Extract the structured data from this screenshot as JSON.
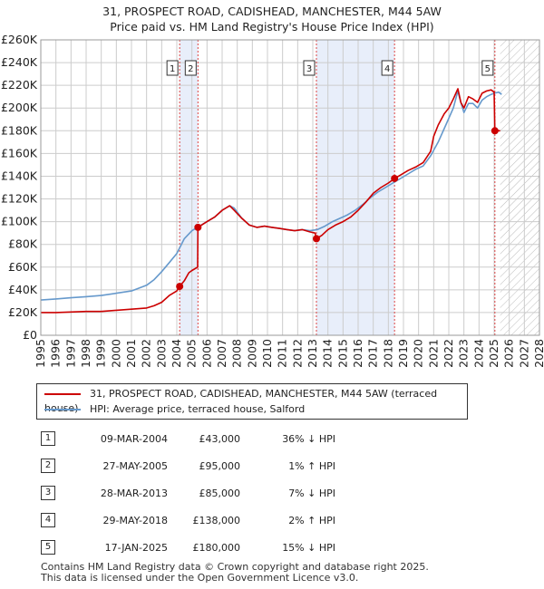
{
  "title_line1": "31, PROSPECT ROAD, CADISHEAD, MANCHESTER, M44 5AW",
  "title_line2": "Price paid vs. HM Land Registry's House Price Index (HPI)",
  "colors": {
    "property": "#cc0000",
    "hpi": "#6699cc",
    "shade": "#e8eefa",
    "grid": "#cccccc",
    "sale_line": "#dd4444"
  },
  "chart_data": {
    "type": "line",
    "title": "31, PROSPECT ROAD, CADISHEAD, MANCHESTER, M44 5AW",
    "subtitle": "Price paid vs. HM Land Registry's House Price Index (HPI)",
    "xlim": [
      1995,
      2028
    ],
    "ylim": [
      0,
      260000
    ],
    "x_ticks": [
      "1995",
      "1996",
      "1997",
      "1998",
      "1999",
      "2000",
      "2001",
      "2002",
      "2003",
      "2004",
      "2005",
      "2006",
      "2007",
      "2008",
      "2009",
      "2010",
      "2011",
      "2012",
      "2013",
      "2014",
      "2015",
      "2016",
      "2017",
      "2018",
      "2019",
      "2020",
      "2021",
      "2022",
      "2023",
      "2024",
      "2025",
      "2026",
      "2027",
      "2028"
    ],
    "y_ticks": [
      {
        "value": 0,
        "label": "£0"
      },
      {
        "value": 20000,
        "label": "£20K"
      },
      {
        "value": 40000,
        "label": "£40K"
      },
      {
        "value": 60000,
        "label": "£60K"
      },
      {
        "value": 80000,
        "label": "£80K"
      },
      {
        "value": 100000,
        "label": "£100K"
      },
      {
        "value": 120000,
        "label": "£120K"
      },
      {
        "value": 140000,
        "label": "£140K"
      },
      {
        "value": 160000,
        "label": "£160K"
      },
      {
        "value": 180000,
        "label": "£180K"
      },
      {
        "value": 200000,
        "label": "£200K"
      },
      {
        "value": 220000,
        "label": "£220K"
      },
      {
        "value": 240000,
        "label": "£240K"
      },
      {
        "value": 260000,
        "label": "£260K"
      }
    ],
    "shaded_ranges": [
      [
        2004.19,
        2005.4
      ],
      [
        2013.24,
        2018.41
      ]
    ],
    "future_hatch_from": 2025.4,
    "series": [
      {
        "name": "31, PROSPECT ROAD, CADISHEAD, MANCHESTER, M44 5AW (terraced house)",
        "color": "#cc0000",
        "x": [
          1995.0,
          1996.0,
          1997.0,
          1998.0,
          1999.0,
          2000.0,
          2001.0,
          2002.0,
          2002.5,
          2003.0,
          2003.5,
          2004.0,
          2004.19,
          2004.5,
          2004.8,
          2005.0,
          2005.38,
          2005.4,
          2006.0,
          2006.5,
          2007.0,
          2007.5,
          2007.8,
          2008.3,
          2008.8,
          2009.3,
          2009.8,
          2010.3,
          2010.8,
          2011.3,
          2011.8,
          2012.3,
          2012.8,
          2013.15,
          2013.24,
          2013.6,
          2014.0,
          2014.5,
          2015.0,
          2015.5,
          2016.0,
          2016.5,
          2017.0,
          2017.5,
          2018.0,
          2018.41,
          2018.8,
          2019.3,
          2019.8,
          2020.3,
          2020.8,
          2021.0,
          2021.3,
          2021.7,
          2022.0,
          2022.3,
          2022.6,
          2022.8,
          2023.0,
          2023.3,
          2023.6,
          2023.9,
          2024.2,
          2024.5,
          2024.8,
          2025.0,
          2025.05,
          2025.4
        ],
        "y": [
          20000,
          20000,
          20500,
          21000,
          21000,
          22000,
          23000,
          24000,
          26000,
          29000,
          35000,
          39000,
          43000,
          48000,
          55000,
          57000,
          60000,
          95000,
          100000,
          104000,
          110000,
          114000,
          110000,
          103000,
          97000,
          95000,
          96000,
          95000,
          94000,
          93000,
          92000,
          93000,
          91000,
          90000,
          85000,
          88000,
          93000,
          97000,
          100000,
          104000,
          110000,
          117000,
          125000,
          130000,
          134000,
          138000,
          141000,
          145000,
          148000,
          152000,
          162000,
          175000,
          185000,
          195000,
          200000,
          208000,
          217000,
          205000,
          200000,
          210000,
          208000,
          205000,
          213000,
          215000,
          216000,
          214000,
          180000,
          180000
        ]
      },
      {
        "name": "HPI: Average price, terraced house, Salford",
        "color": "#6699cc",
        "x": [
          1995.0,
          1996.0,
          1997.0,
          1998.0,
          1999.0,
          2000.0,
          2001.0,
          2002.0,
          2002.5,
          2003.0,
          2003.5,
          2004.0,
          2004.5,
          2005.0,
          2005.5,
          2006.0,
          2006.5,
          2007.0,
          2007.5,
          2007.8,
          2008.3,
          2008.8,
          2009.3,
          2009.8,
          2010.3,
          2010.8,
          2011.3,
          2011.8,
          2012.3,
          2012.8,
          2013.3,
          2013.8,
          2014.3,
          2014.8,
          2015.3,
          2015.8,
          2016.3,
          2016.8,
          2017.3,
          2017.8,
          2018.3,
          2018.8,
          2019.3,
          2019.8,
          2020.3,
          2020.8,
          2021.3,
          2021.8,
          2022.3,
          2022.6,
          2022.8,
          2023.0,
          2023.3,
          2023.6,
          2023.9,
          2024.2,
          2024.5,
          2024.8,
          2025.0,
          2025.3,
          2025.5
        ],
        "y": [
          31000,
          32000,
          33000,
          34000,
          35000,
          37000,
          39000,
          44000,
          49000,
          56000,
          64000,
          72000,
          85000,
          92000,
          96000,
          100000,
          104000,
          110000,
          114000,
          112000,
          103000,
          97000,
          95000,
          96000,
          95000,
          94000,
          93000,
          92000,
          93000,
          92000,
          93000,
          96000,
          100000,
          103000,
          106000,
          110000,
          115000,
          121000,
          126000,
          130000,
          134000,
          138000,
          142000,
          146000,
          149000,
          158000,
          170000,
          185000,
          200000,
          215000,
          205000,
          196000,
          204000,
          204000,
          200000,
          207000,
          210000,
          212000,
          213000,
          214000,
          212000
        ]
      }
    ],
    "sales": [
      {
        "marker": "1",
        "x": 2004.19,
        "y": 43000
      },
      {
        "marker": "2",
        "x": 2005.4,
        "y": 95000
      },
      {
        "marker": "3",
        "x": 2013.24,
        "y": 85000
      },
      {
        "marker": "4",
        "x": 2018.41,
        "y": 138000
      },
      {
        "marker": "5",
        "x": 2025.05,
        "y": 180000
      }
    ]
  },
  "legend": {
    "property_label": "31, PROSPECT ROAD, CADISHEAD, MANCHESTER, M44 5AW (terraced house)",
    "hpi_label": "HPI: Average price, terraced house, Salford"
  },
  "sales_table": [
    {
      "marker": "1",
      "date": "09-MAR-2004",
      "price": "£43,000",
      "hpi": "36% ↓ HPI"
    },
    {
      "marker": "2",
      "date": "27-MAY-2005",
      "price": "£95,000",
      "hpi": "1% ↑ HPI"
    },
    {
      "marker": "3",
      "date": "28-MAR-2013",
      "price": "£85,000",
      "hpi": "7% ↓ HPI"
    },
    {
      "marker": "4",
      "date": "29-MAY-2018",
      "price": "£138,000",
      "hpi": "2% ↑ HPI"
    },
    {
      "marker": "5",
      "date": "17-JAN-2025",
      "price": "£180,000",
      "hpi": "15% ↓ HPI"
    }
  ],
  "footer": {
    "line1": "Contains HM Land Registry data © Crown copyright and database right 2025.",
    "line2": "This data is licensed under the Open Government Licence v3.0."
  }
}
